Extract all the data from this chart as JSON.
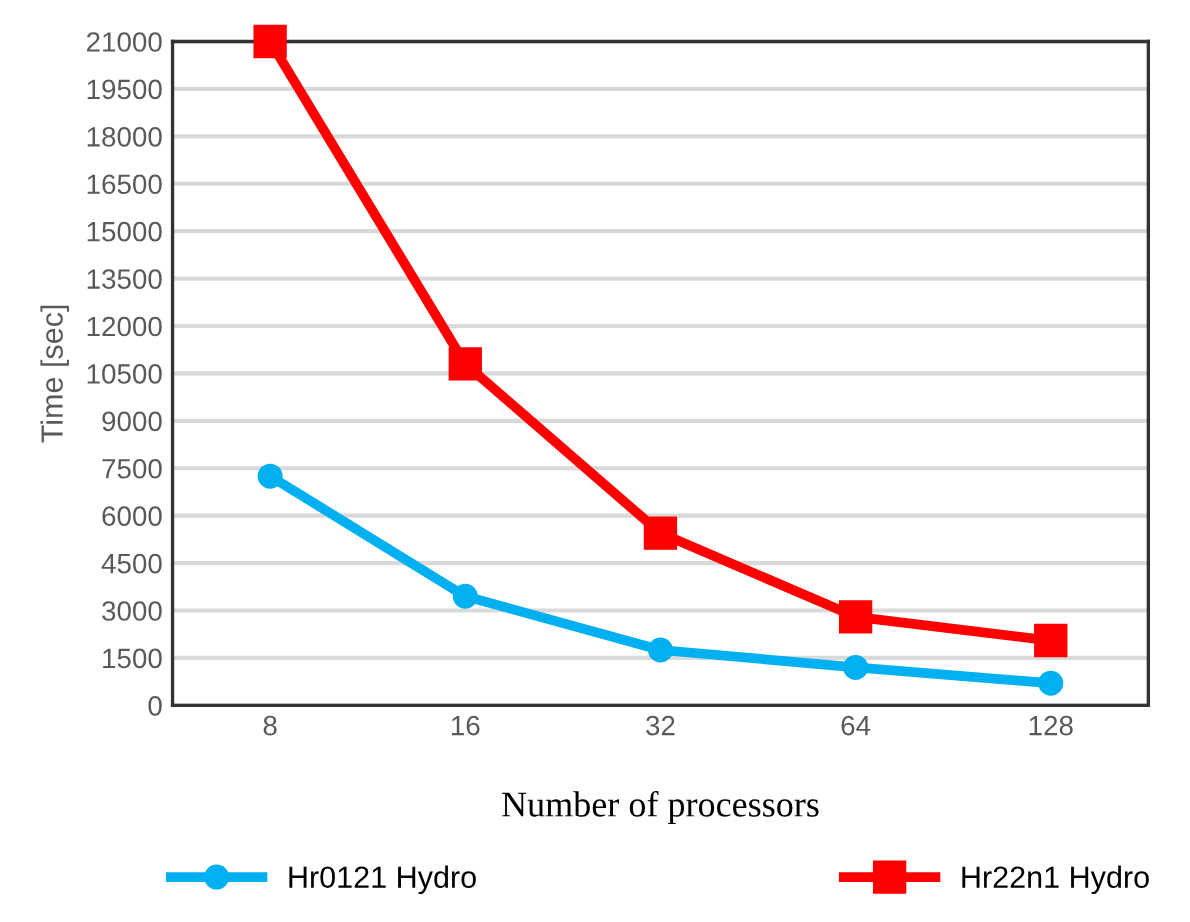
{
  "chart_data": {
    "type": "line",
    "xlabel": "Number of processors",
    "ylabel": "Time [sec]",
    "categories": [
      "8",
      "16",
      "32",
      "64",
      "128"
    ],
    "series": [
      {
        "name": "Hr0121 Hydro",
        "color": "#00b0f0",
        "values": [
          7250,
          3450,
          1750,
          1200,
          700
        ],
        "marker": "circle"
      },
      {
        "name": "Hr22n1 Hydro",
        "color": "#ff0000",
        "values": [
          21000,
          10800,
          5450,
          2800,
          2050
        ],
        "marker": "square"
      }
    ],
    "ylim": [
      0,
      21000
    ],
    "yticks": [
      0,
      1500,
      3000,
      4500,
      6000,
      7500,
      9000,
      10500,
      12000,
      13500,
      15000,
      16500,
      18000,
      19500,
      21000
    ],
    "grid": "y",
    "legend": "bottom",
    "line_style": "solid"
  }
}
